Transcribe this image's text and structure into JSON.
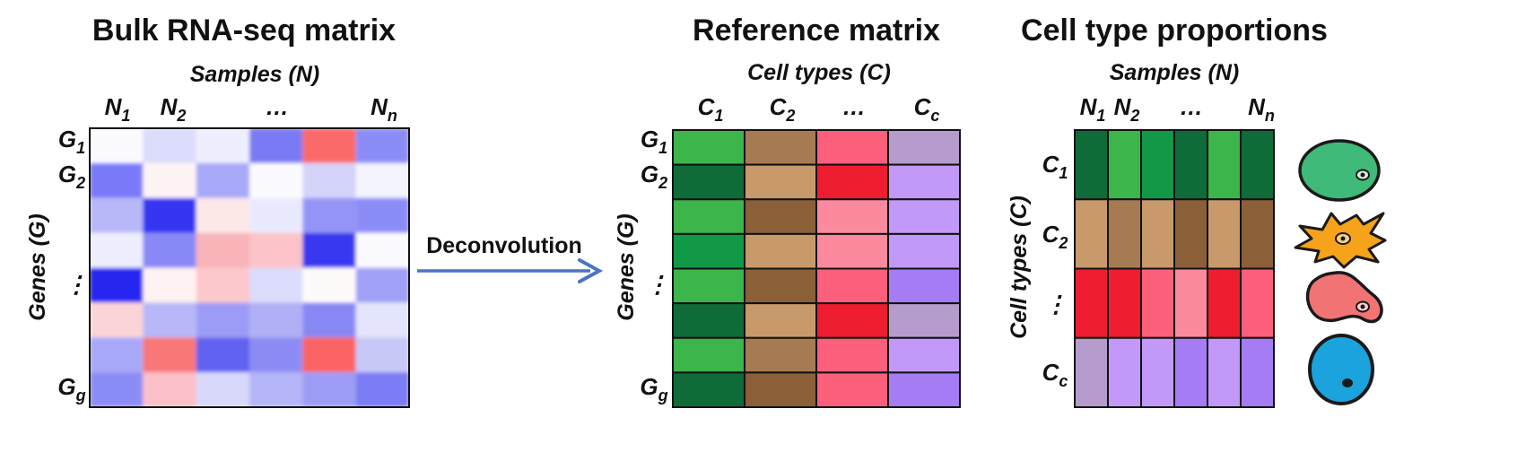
{
  "bulk": {
    "title": "Bulk RNA-seq matrix",
    "col_axis": "Samples (N)",
    "row_axis": "Genes (G)",
    "col_labels": [
      {
        "base": "N",
        "sub": "1"
      },
      {
        "base": "N",
        "sub": "2"
      },
      {
        "base": "…",
        "sub": ""
      },
      {
        "base": "N",
        "sub": "n"
      }
    ],
    "row_labels": [
      {
        "base": "G",
        "sub": "1"
      },
      {
        "base": "G",
        "sub": "2"
      },
      {
        "base": "⋮",
        "sub": ""
      },
      {
        "base": "G",
        "sub": "g"
      }
    ],
    "cells": [
      [
        "#fafaff",
        "#dcdcfc",
        "#eeeefe",
        "#7a7af4",
        "#fa6a6a",
        "#8c8cf6"
      ],
      [
        "#7a7af8",
        "#fff4f4",
        "#a8a8f8",
        "#fbfbff",
        "#d4d4fa",
        "#f4f4fe"
      ],
      [
        "#b8b8f8",
        "#3636f2",
        "#fde8e8",
        "#eaeafe",
        "#9494f6",
        "#8c8cf6"
      ],
      [
        "#eeeefe",
        "#8888f6",
        "#f8b4b8",
        "#fcc4c8",
        "#3838f0",
        "#fbfbff"
      ],
      [
        "#2626f0",
        "#fff2f2",
        "#fcc8cc",
        "#dcdcfc",
        "#fffafa",
        "#a0a0f6"
      ],
      [
        "#fcd4d8",
        "#b8b8f8",
        "#9c9cf6",
        "#b0b0f6",
        "#8888f4",
        "#e4e4fc"
      ],
      [
        "#a8a8f8",
        "#f87878",
        "#6262f0",
        "#8c8cf4",
        "#fa6464",
        "#c8c8f8"
      ],
      [
        "#8c8cf6",
        "#fac0c8",
        "#d8d8fa",
        "#b4b4f8",
        "#9c9cf6",
        "#7c7cf4"
      ]
    ]
  },
  "arrow": {
    "label": "Deconvolution",
    "color": "#4a74c4"
  },
  "reference": {
    "title": "Reference matrix",
    "col_axis": "Cell types (C)",
    "row_axis": "Genes (G)",
    "col_labels": [
      {
        "base": "C",
        "sub": "1"
      },
      {
        "base": "C",
        "sub": "2"
      },
      {
        "base": "…",
        "sub": ""
      },
      {
        "base": "C",
        "sub": "c"
      }
    ],
    "row_labels": [
      {
        "base": "G",
        "sub": "1"
      },
      {
        "base": "G",
        "sub": "2"
      },
      {
        "base": "⋮",
        "sub": ""
      },
      {
        "base": "G",
        "sub": "g"
      }
    ],
    "cells": [
      [
        "#3cb54a",
        "#a67b54",
        "#fb5f7b",
        "#b59ccc"
      ],
      [
        "#0f6b38",
        "#c8996a",
        "#ee1d2f",
        "#c299f8"
      ],
      [
        "#3cb54a",
        "#8b5f38",
        "#fb8a9f",
        "#c299f8"
      ],
      [
        "#129947",
        "#c8996a",
        "#fb8a9f",
        "#c299f8"
      ],
      [
        "#3cb54a",
        "#8b5f38",
        "#fb5f7b",
        "#a67cf5"
      ],
      [
        "#0f6b38",
        "#c8996a",
        "#ee1d2f",
        "#b59ccc"
      ],
      [
        "#3cb54a",
        "#a67b54",
        "#fb5f7b",
        "#c299f8"
      ],
      [
        "#0f6b38",
        "#8b5f38",
        "#fb5f7b",
        "#a67cf5"
      ]
    ]
  },
  "proportions": {
    "title": "Cell type proportions",
    "col_axis": "Samples (N)",
    "row_axis": "Cell types (C)",
    "col_labels": [
      {
        "base": "N",
        "sub": "1"
      },
      {
        "base": "N",
        "sub": "2"
      },
      {
        "base": "…",
        "sub": ""
      },
      {
        "base": "N",
        "sub": "n"
      }
    ],
    "row_labels": [
      {
        "base": "C",
        "sub": "1"
      },
      {
        "base": "C",
        "sub": "2"
      },
      {
        "base": "⋮",
        "sub": ""
      },
      {
        "base": "C",
        "sub": "c"
      }
    ],
    "cells": [
      [
        "#0f6b38",
        "#3cb54a",
        "#129947",
        "#0f6b38",
        "#3cb54a",
        "#0f6b38"
      ],
      [
        "#c8996a",
        "#a67b54",
        "#c8996a",
        "#8b5f38",
        "#c8996a",
        "#8b5f38"
      ],
      [
        "#ee1d2f",
        "#ee1d2f",
        "#fb5f7b",
        "#fb8a9f",
        "#ee1d2f",
        "#fb5f7b"
      ],
      [
        "#b59ccc",
        "#c299f8",
        "#c299f8",
        "#a67cf5",
        "#c299f8",
        "#a67cf5"
      ]
    ],
    "cell_icons": [
      {
        "name": "green-cell-icon",
        "fill": "#3fba78"
      },
      {
        "name": "orange-cell-icon",
        "fill": "#f6a21a"
      },
      {
        "name": "pink-cell-icon",
        "fill": "#f17373"
      },
      {
        "name": "blue-cell-icon",
        "fill": "#1ba3dd"
      }
    ]
  }
}
